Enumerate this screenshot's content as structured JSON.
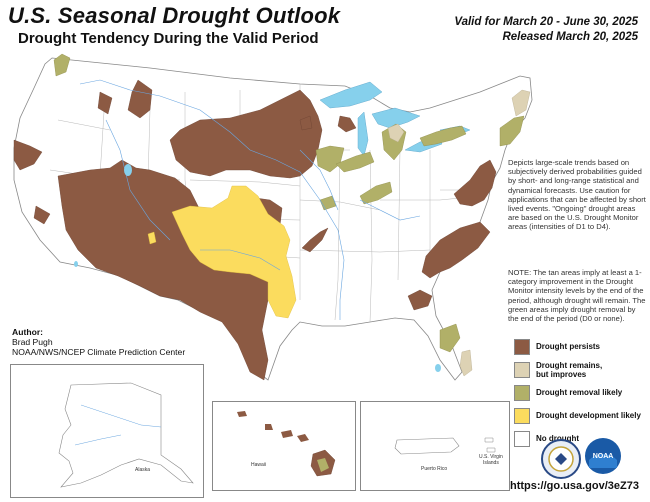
{
  "header": {
    "title": "U.S. Seasonal Drought Outlook",
    "subtitle": "Drought Tendency During the Valid Period",
    "valid": "Valid for March 20 - June 30, 2025",
    "released": "Released March 20, 2025"
  },
  "description": "Depicts large-scale trends based on subjectively derived probabilities guided by short- and long-range statistical and dynamical forecasts. Use caution for applications that can be affected by short lived events. \"Ongoing\" drought areas are based on the U.S. Drought Monitor areas (intensities of D1 to D4).",
  "note": "NOTE: The tan areas imply at least a 1-category improvement in the Drought Monitor intensity levels by the end of the period, although drought will remain. The green areas imply drought removal by the end of the period (D0 or none).",
  "legend": [
    {
      "label_line1": "Drought persists",
      "label_line2": "",
      "color": "#8c5a43"
    },
    {
      "label_line1": "Drought remains,",
      "label_line2": "but improves",
      "color": "#ddd2b4"
    },
    {
      "label_line1": "Drought removal likely",
      "label_line2": "",
      "color": "#b1b068"
    },
    {
      "label_line1": "Drought development likely",
      "label_line2": "",
      "color": "#fbdc5e"
    },
    {
      "label_line1": "No drought",
      "label_line2": "",
      "color": "#ffffff"
    }
  ],
  "author": {
    "heading": "Author:",
    "name": "Brad Pugh",
    "org": "NOAA/NWS/NCEP Climate Prediction Center"
  },
  "insets": {
    "alaska": "Alaska",
    "hawaii": "Hawaii",
    "puerto_rico": "Puerto Rico",
    "virgin_islands_line1": "U.S. Virgin",
    "virgin_islands_line2": "Islands"
  },
  "logos": {
    "commerce": "commerce-seal-icon",
    "noaa": "noaa-logo-icon",
    "noaa_text": "NOAA"
  },
  "url": "https://go.usa.gov/3eZ73",
  "colors": {
    "persists": "#8c5a43",
    "improves": "#ddd2b4",
    "removal": "#b1b068",
    "development": "#fbdc5e",
    "water": "#86d0ec",
    "border": "#9a9a9a",
    "river": "#6aa6e0"
  }
}
